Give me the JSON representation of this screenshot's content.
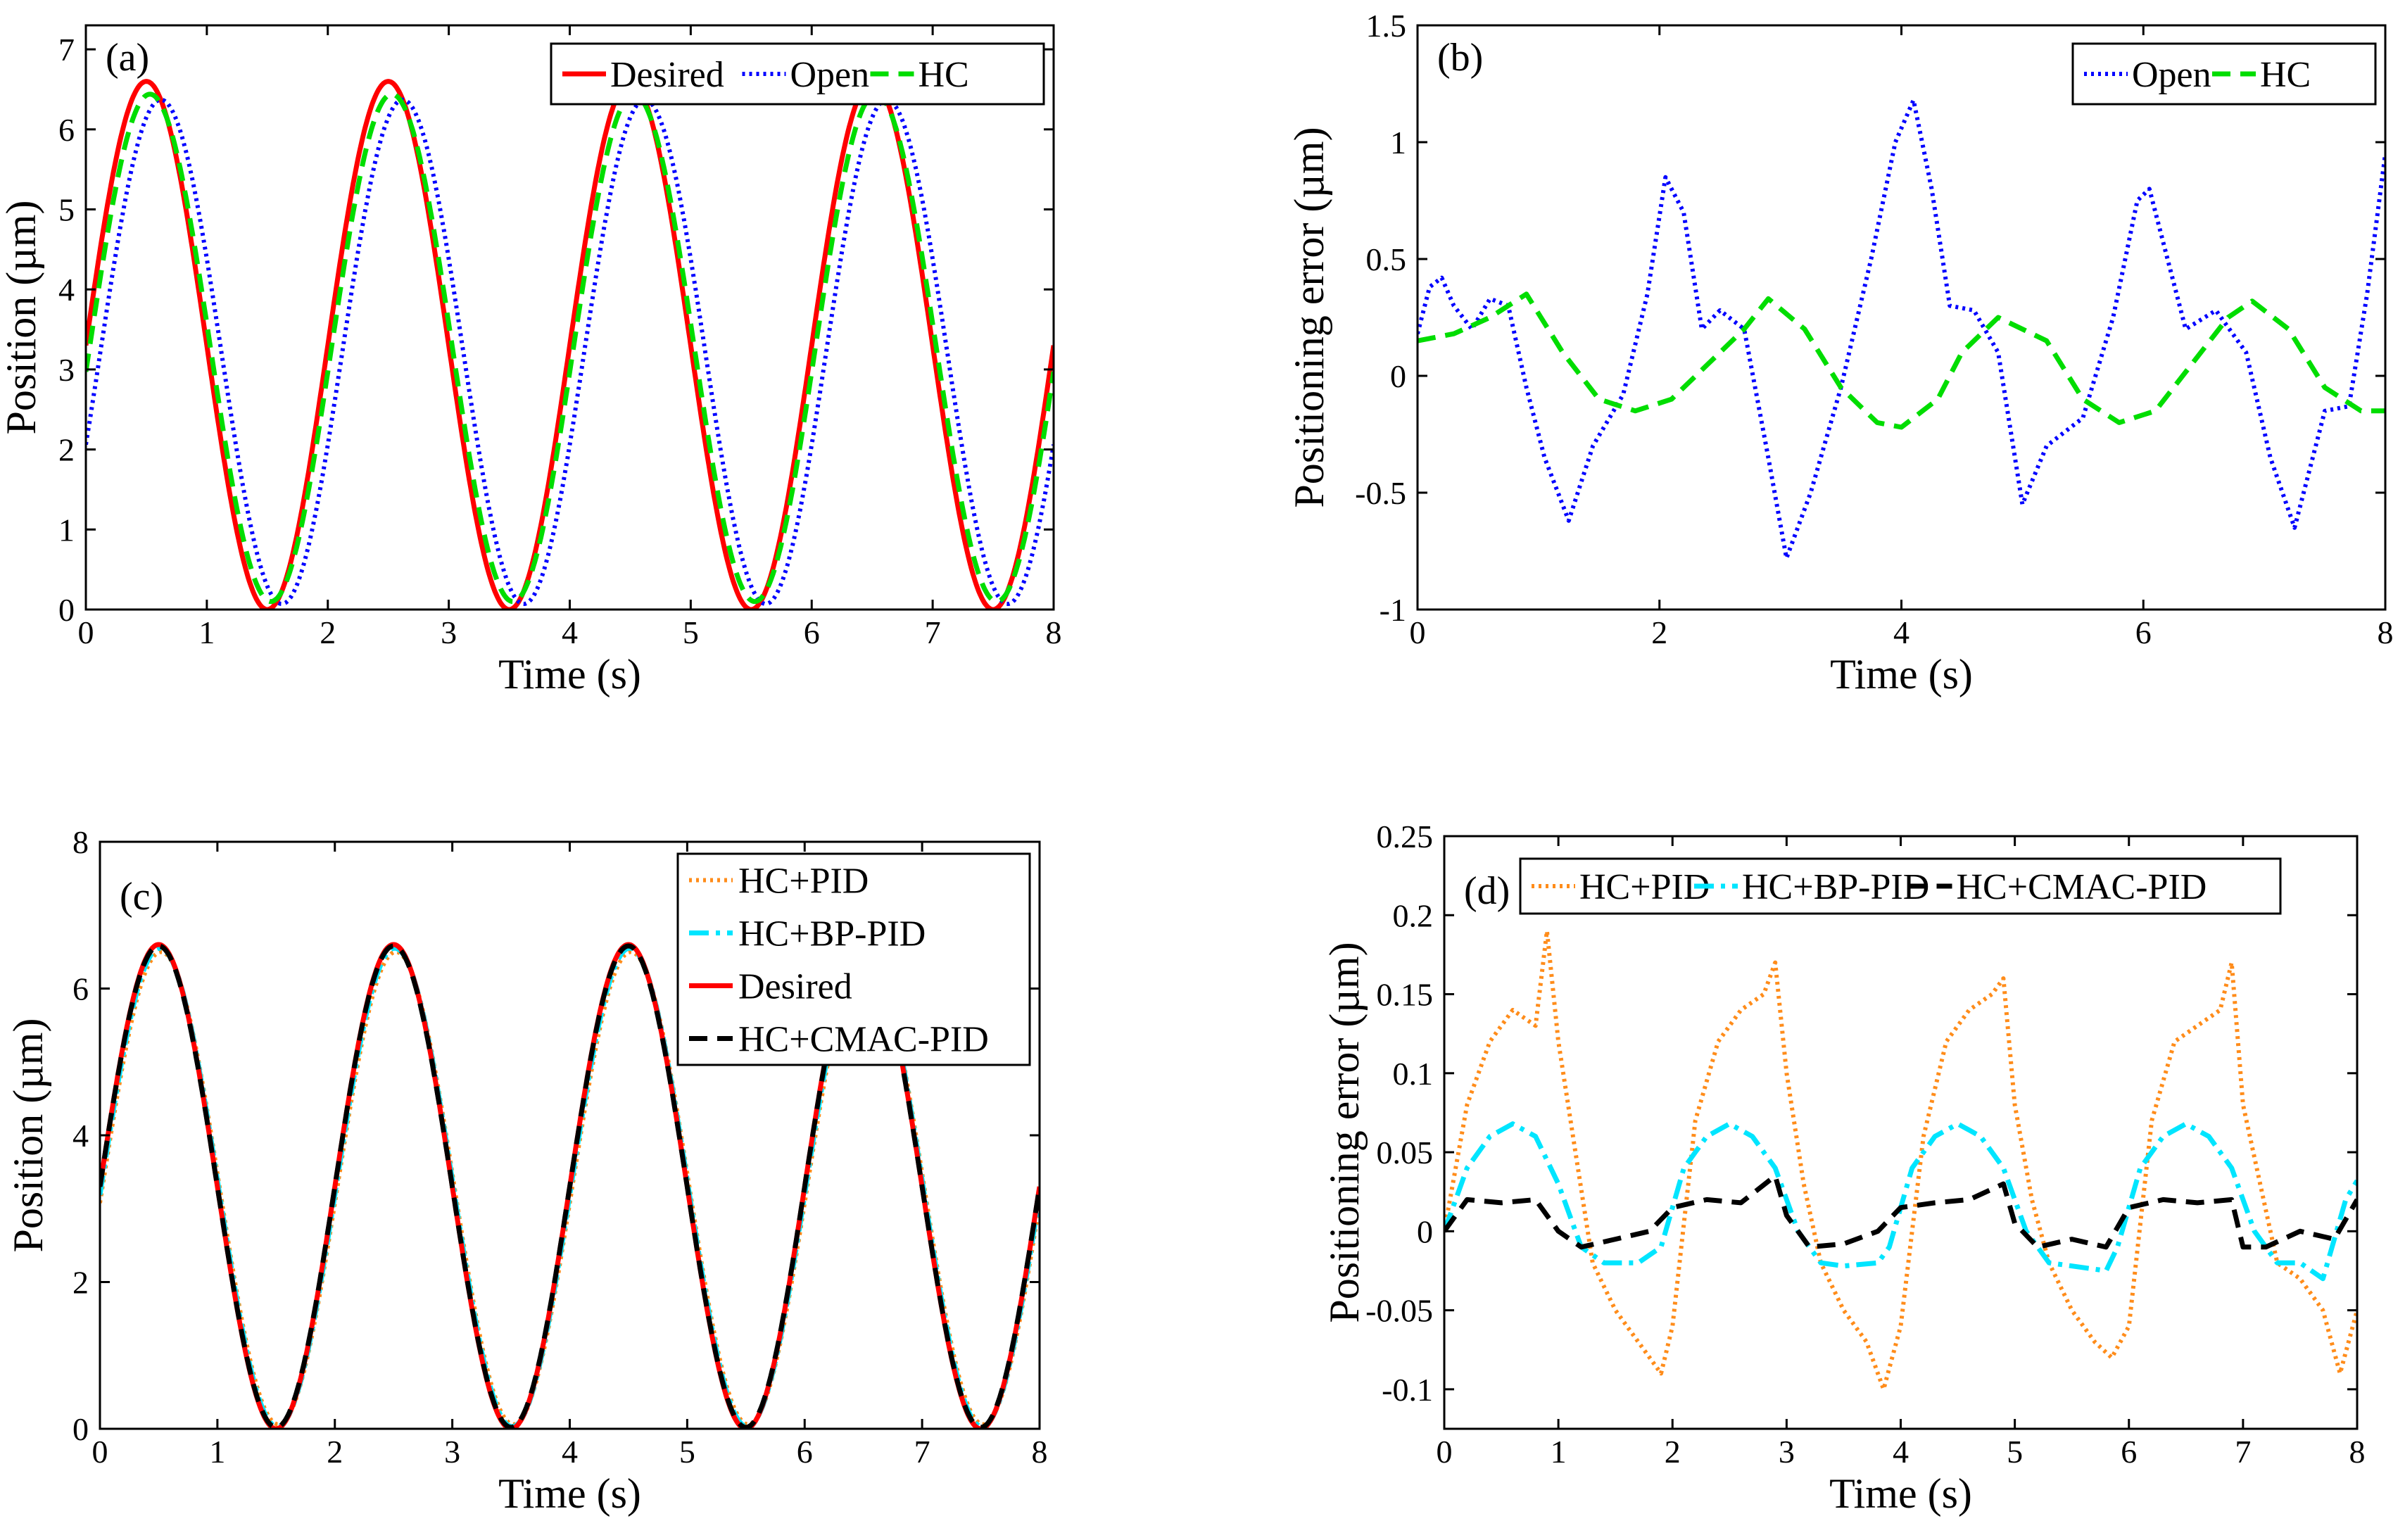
{
  "chart_data": [
    {
      "panel": "(a)",
      "type": "line",
      "xlabel": "Time (s)",
      "ylabel": "Position (µm)",
      "xlim": [
        0,
        8
      ],
      "ylim": [
        0,
        7.3
      ],
      "xticks": [
        0,
        1,
        2,
        3,
        4,
        5,
        6,
        7,
        8
      ],
      "yticks": [
        0,
        1,
        2,
        3,
        4,
        5,
        6,
        7
      ],
      "legend_placement": "top-right",
      "legend_layout": "horizontal",
      "series": [
        {
          "name": "Desired",
          "color": "#ff0000",
          "style": "solid",
          "model": {
            "kind": "sine",
            "offset": 3.3,
            "amp": 3.3,
            "period": 2,
            "phase": 0
          },
          "x": [
            0,
            0.5,
            1,
            1.5,
            2,
            2.5,
            3,
            3.5,
            4,
            4.5,
            5,
            5.5,
            6,
            6.5,
            7,
            7.5,
            8
          ],
          "y": [
            3.3,
            6.6,
            3.3,
            0,
            3.3,
            6.6,
            3.3,
            0,
            3.3,
            6.6,
            3.3,
            0,
            3.3,
            6.6,
            3.3,
            0,
            3.3
          ]
        },
        {
          "name": "Open",
          "color": "#0000ff",
          "style": "dotted",
          "model": {
            "kind": "sine",
            "offset": 3.22,
            "amp": 3.15,
            "period": 2,
            "phase": -0.12
          },
          "x": [
            0,
            0.62,
            1.62,
            2.62,
            3.62,
            4.62,
            5.62,
            6.62,
            7.62,
            8
          ],
          "y": [
            2.9,
            6.37,
            0.07,
            6.37,
            0.07,
            6.37,
            0.07,
            6.37,
            0.07,
            2.2
          ]
        },
        {
          "name": "HC",
          "color": "#00dd00",
          "style": "dashed",
          "model": {
            "kind": "sine",
            "offset": 3.27,
            "amp": 3.17,
            "period": 2,
            "phase": -0.03
          },
          "x": [
            0,
            0.53,
            1.53,
            2.53,
            3.53,
            4.53,
            5.53,
            6.53,
            7.53,
            8
          ],
          "y": [
            3.2,
            6.44,
            0.1,
            6.44,
            0.1,
            6.44,
            0.1,
            6.44,
            0.1,
            3.35
          ]
        }
      ]
    },
    {
      "panel": "(b)",
      "type": "line",
      "xlabel": "Time (s)",
      "ylabel": "Positioning error (µm)",
      "xlim": [
        0,
        8
      ],
      "ylim": [
        -1,
        1.5
      ],
      "xticks": [
        0,
        2,
        4,
        6,
        8
      ],
      "yticks": [
        -1,
        -0.5,
        0,
        0.5,
        1,
        1.5
      ],
      "legend_placement": "top-right",
      "legend_layout": "horizontal",
      "series": [
        {
          "name": "Open",
          "color": "#0000ff",
          "style": "dotted",
          "x": [
            0,
            0.1,
            0.2,
            0.3,
            0.45,
            0.6,
            0.75,
            0.9,
            1.05,
            1.25,
            1.45,
            1.7,
            1.9,
            2.05,
            2.2,
            2.35,
            2.5,
            2.7,
            2.9,
            3.05,
            3.25,
            3.5,
            3.75,
            3.95,
            4.1,
            4.25,
            4.4,
            4.6,
            4.8,
            5.0,
            5.2,
            5.5,
            5.75,
            5.95,
            6.05,
            6.2,
            6.35,
            6.6,
            6.85,
            7.05,
            7.25,
            7.5,
            7.7,
            7.85,
            8.0
          ],
          "y": [
            0.18,
            0.38,
            0.42,
            0.3,
            0.2,
            0.33,
            0.3,
            -0.05,
            -0.35,
            -0.62,
            -0.3,
            -0.08,
            0.35,
            0.85,
            0.7,
            0.2,
            0.28,
            0.2,
            -0.35,
            -0.78,
            -0.5,
            -0.05,
            0.5,
            1.0,
            1.18,
            0.8,
            0.3,
            0.28,
            0.1,
            -0.55,
            -0.3,
            -0.18,
            0.25,
            0.75,
            0.8,
            0.5,
            0.2,
            0.28,
            0.1,
            -0.35,
            -0.65,
            -0.15,
            -0.13,
            0.35,
            0.95
          ]
        },
        {
          "name": "HC",
          "color": "#00dd00",
          "style": "dashed",
          "x": [
            0,
            0.3,
            0.6,
            0.9,
            1.2,
            1.5,
            1.8,
            2.1,
            2.4,
            2.7,
            2.9,
            3.2,
            3.5,
            3.8,
            4.0,
            4.3,
            4.5,
            4.8,
            5.2,
            5.5,
            5.8,
            6.1,
            6.4,
            6.7,
            6.9,
            7.2,
            7.5,
            7.8,
            8.0
          ],
          "y": [
            0.15,
            0.18,
            0.25,
            0.35,
            0.1,
            -0.1,
            -0.15,
            -0.1,
            0.05,
            0.2,
            0.33,
            0.2,
            -0.05,
            -0.2,
            -0.22,
            -0.1,
            0.1,
            0.25,
            0.15,
            -0.1,
            -0.2,
            -0.15,
            0.05,
            0.25,
            0.32,
            0.2,
            -0.05,
            -0.15,
            -0.15
          ]
        }
      ]
    },
    {
      "panel": "(c)",
      "type": "line",
      "xlabel": "Time (s)",
      "ylabel": "Position (µm)",
      "xlim": [
        0,
        8
      ],
      "ylim": [
        0,
        8
      ],
      "xticks": [
        0,
        1,
        2,
        3,
        4,
        5,
        6,
        7,
        8
      ],
      "yticks": [
        0,
        2,
        4,
        6,
        8
      ],
      "legend_placement": "top-right",
      "legend_layout": "vertical",
      "series": [
        {
          "name": "HC+PID",
          "color": "#ff8c1a",
          "style": "dotted",
          "model": {
            "kind": "sine",
            "offset": 3.28,
            "amp": 3.22,
            "period": 2,
            "phase": -0.02
          }
        },
        {
          "name": "HC+BP-PID",
          "color": "#00e5ff",
          "style": "dashdot",
          "model": {
            "kind": "sine",
            "offset": 3.29,
            "amp": 3.26,
            "period": 2,
            "phase": -0.01
          }
        },
        {
          "name": "Desired",
          "color": "#ff0000",
          "style": "solid",
          "model": {
            "kind": "sine",
            "offset": 3.3,
            "amp": 3.3,
            "period": 2,
            "phase": 0
          }
        },
        {
          "name": "HC+CMAC-PID",
          "color": "#000000",
          "style": "dashed",
          "model": {
            "kind": "sine",
            "offset": 3.3,
            "amp": 3.28,
            "period": 2,
            "phase": 0
          }
        }
      ]
    },
    {
      "panel": "(d)",
      "type": "line",
      "xlabel": "Time (s)",
      "ylabel": "Positioning error (µm)",
      "xlim": [
        0,
        8
      ],
      "ylim": [
        -0.125,
        0.25
      ],
      "xticks": [
        0,
        1,
        2,
        3,
        4,
        5,
        6,
        7,
        8
      ],
      "yticks": [
        -0.1,
        -0.05,
        0,
        0.05,
        0.1,
        0.15,
        0.2,
        0.25
      ],
      "legend_placement": "top",
      "legend_layout": "horizontal",
      "series": [
        {
          "name": "HC+PID",
          "color": "#ff8c1a",
          "style": "dotted",
          "x": [
            0,
            0.2,
            0.4,
            0.6,
            0.8,
            0.9,
            1.0,
            1.15,
            1.3,
            1.5,
            1.7,
            1.9,
            2.0,
            2.2,
            2.4,
            2.6,
            2.8,
            2.9,
            3.0,
            3.15,
            3.3,
            3.5,
            3.7,
            3.85,
            4.0,
            4.2,
            4.4,
            4.6,
            4.8,
            4.9,
            5.0,
            5.15,
            5.3,
            5.5,
            5.7,
            5.85,
            6.0,
            6.2,
            6.4,
            6.6,
            6.8,
            6.9,
            7.0,
            7.15,
            7.3,
            7.5,
            7.7,
            7.85,
            8.0
          ],
          "y": [
            0.0,
            0.08,
            0.12,
            0.14,
            0.13,
            0.19,
            0.12,
            0.05,
            -0.02,
            -0.05,
            -0.07,
            -0.09,
            -0.06,
            0.07,
            0.12,
            0.14,
            0.15,
            0.17,
            0.1,
            0.03,
            -0.02,
            -0.05,
            -0.07,
            -0.1,
            -0.06,
            0.06,
            0.12,
            0.14,
            0.15,
            0.16,
            0.08,
            0.02,
            -0.02,
            -0.05,
            -0.07,
            -0.08,
            -0.06,
            0.07,
            0.12,
            0.13,
            0.14,
            0.17,
            0.08,
            0.03,
            -0.02,
            -0.03,
            -0.05,
            -0.09,
            -0.05
          ]
        },
        {
          "name": "HC+BP-PID",
          "color": "#00e5ff",
          "style": "dashdot",
          "x": [
            0,
            0.2,
            0.4,
            0.6,
            0.8,
            1.0,
            1.2,
            1.4,
            1.7,
            1.9,
            2.1,
            2.3,
            2.5,
            2.7,
            2.9,
            3.1,
            3.3,
            3.5,
            3.8,
            3.9,
            4.1,
            4.3,
            4.5,
            4.7,
            4.9,
            5.1,
            5.3,
            5.5,
            5.8,
            5.9,
            6.1,
            6.3,
            6.5,
            6.7,
            6.9,
            7.1,
            7.3,
            7.5,
            7.7,
            7.9,
            8.0
          ],
          "y": [
            0.0,
            0.04,
            0.06,
            0.068,
            0.06,
            0.03,
            -0.01,
            -0.02,
            -0.02,
            -0.01,
            0.04,
            0.06,
            0.068,
            0.06,
            0.04,
            0.0,
            -0.02,
            -0.022,
            -0.02,
            -0.01,
            0.04,
            0.06,
            0.068,
            0.06,
            0.04,
            0.0,
            -0.02,
            -0.022,
            -0.025,
            -0.01,
            0.04,
            0.06,
            0.068,
            0.06,
            0.04,
            0.0,
            -0.02,
            -0.02,
            -0.03,
            0.02,
            0.032
          ]
        },
        {
          "name": "HC+CMAC-PID",
          "color": "#000000",
          "style": "dashed",
          "x": [
            0,
            0.2,
            0.5,
            0.8,
            1.0,
            1.2,
            1.5,
            1.8,
            2.0,
            2.3,
            2.6,
            2.9,
            3.0,
            3.2,
            3.5,
            3.8,
            4.0,
            4.3,
            4.6,
            4.9,
            5.0,
            5.2,
            5.5,
            5.8,
            6.0,
            6.3,
            6.6,
            6.9,
            7.0,
            7.2,
            7.5,
            7.8,
            8.0
          ],
          "y": [
            0.0,
            0.02,
            0.018,
            0.02,
            0.0,
            -0.01,
            -0.005,
            0.0,
            0.015,
            0.02,
            0.018,
            0.035,
            0.01,
            -0.01,
            -0.008,
            0.0,
            0.015,
            0.018,
            0.02,
            0.03,
            0.005,
            -0.01,
            -0.005,
            -0.01,
            0.015,
            0.02,
            0.018,
            0.02,
            -0.01,
            -0.01,
            0.0,
            -0.005,
            0.02
          ]
        }
      ]
    }
  ]
}
